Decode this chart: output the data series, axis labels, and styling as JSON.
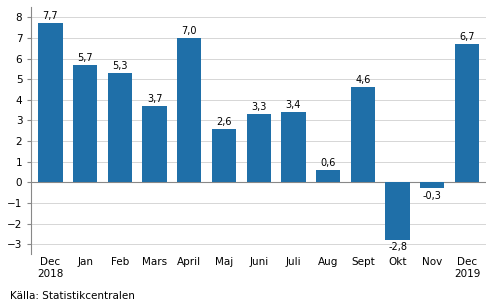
{
  "categories": [
    "Dec\n2018",
    "Jan",
    "Feb",
    "Mars",
    "April",
    "Maj",
    "Juni",
    "Juli",
    "Aug",
    "Sept",
    "Okt",
    "Nov",
    "Dec\n2019"
  ],
  "values": [
    7.7,
    5.7,
    5.3,
    3.7,
    7.0,
    2.6,
    3.3,
    3.4,
    0.6,
    4.6,
    -2.8,
    -0.3,
    6.7
  ],
  "bar_color": "#1F6FA8",
  "background_color": "#ffffff",
  "ylim": [
    -3.5,
    8.5
  ],
  "yticks": [
    -3,
    -2,
    -1,
    0,
    1,
    2,
    3,
    4,
    5,
    6,
    7,
    8
  ],
  "source_text": "Källa: Statistikcentralen",
  "label_fontsize": 7.0,
  "tick_fontsize": 7.5,
  "source_fontsize": 7.5
}
